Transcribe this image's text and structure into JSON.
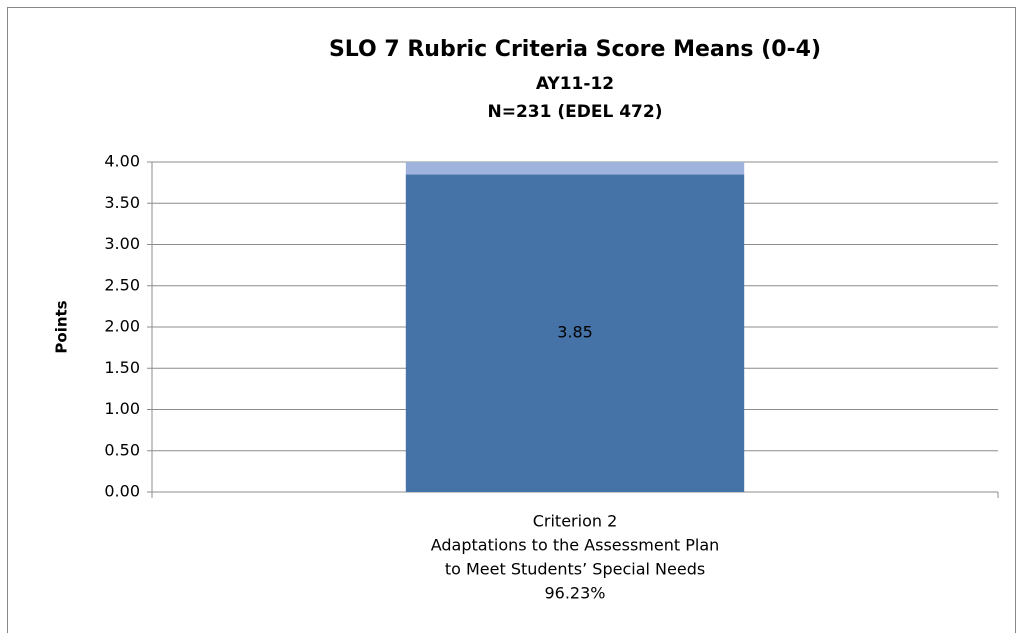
{
  "chart_data": {
    "type": "stacked_bar",
    "title": "SLO 7 Rubric Criteria Score Means (0-4)",
    "subtitle": [
      "AY11-12",
      "N=231 (EDEL 472)"
    ],
    "y_label": "Points",
    "categories": [
      [
        "Criterion 2",
        "Adaptations to the Assessment Plan",
        "to Meet Students’ Special Needs",
        "96.23%"
      ]
    ],
    "series": [
      {
        "color": "#4573a7",
        "values": [
          3.85
        ],
        "show_labels": true
      },
      {
        "color": "#9fb3dc",
        "values": [
          0.15
        ],
        "show_labels": false
      }
    ],
    "ylim": [
      0,
      4
    ],
    "yticks": [
      {
        "value": 0,
        "label": "0.00"
      },
      {
        "value": 0.5,
        "label": "0.50"
      },
      {
        "value": 1,
        "label": "1.00"
      },
      {
        "value": 1.5,
        "label": "1.50"
      },
      {
        "value": 2,
        "label": "2.00"
      },
      {
        "value": 2.5,
        "label": "2.50"
      },
      {
        "value": 3,
        "label": "3.00"
      },
      {
        "value": 3.5,
        "label": "3.50"
      },
      {
        "value": 4,
        "label": "4.00"
      }
    ],
    "grid": true
  }
}
